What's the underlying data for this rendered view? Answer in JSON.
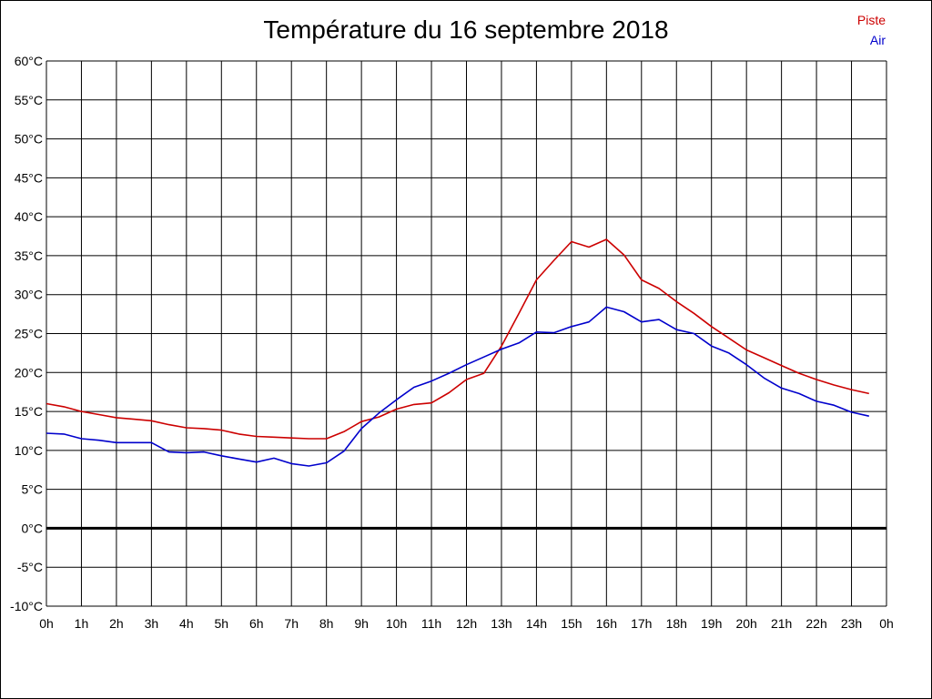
{
  "chart_data": {
    "type": "line",
    "title": "Température du 16 septembre 2018",
    "xlabel": "",
    "ylabel": "",
    "ylim": [
      -10,
      60
    ],
    "ytick_labels": [
      "60°C",
      "55°C",
      "50°C",
      "45°C",
      "40°C",
      "35°C",
      "30°C",
      "25°C",
      "20°C",
      "15°C",
      "10°C",
      "5°C",
      "0°C",
      "-5°C",
      "-10°C"
    ],
    "xtick_labels": [
      "0h",
      "1h",
      "2h",
      "3h",
      "4h",
      "5h",
      "6h",
      "7h",
      "8h",
      "9h",
      "10h",
      "11h",
      "12h",
      "13h",
      "14h",
      "15h",
      "16h",
      "17h",
      "18h",
      "19h",
      "20h",
      "21h",
      "22h",
      "23h",
      "0h"
    ],
    "grid": true,
    "legend": "top-right",
    "x": [
      0,
      0.5,
      1,
      1.5,
      2,
      2.5,
      3,
      3.5,
      4,
      4.5,
      5,
      5.5,
      6,
      6.5,
      7,
      7.5,
      8,
      8.5,
      9,
      9.5,
      10,
      10.5,
      11,
      11.5,
      12,
      12.5,
      13,
      13.5,
      14,
      14.5,
      15,
      15.5,
      16,
      16.5,
      17,
      17.5,
      18,
      18.5,
      19,
      19.5,
      20,
      20.5,
      21,
      21.5,
      22,
      22.5,
      23,
      23.5
    ],
    "series": [
      {
        "name": "Piste",
        "color": "#cc0000",
        "values": [
          16.0,
          15.6,
          15.0,
          14.6,
          14.2,
          14.0,
          13.8,
          13.3,
          12.9,
          12.8,
          12.6,
          12.1,
          11.8,
          11.7,
          11.6,
          11.5,
          11.5,
          12.4,
          13.7,
          14.3,
          15.3,
          15.9,
          16.1,
          17.4,
          19.1,
          19.9,
          23.4,
          27.6,
          31.9,
          34.4,
          36.8,
          36.1,
          37.1,
          35.1,
          31.9,
          30.8,
          29.1,
          27.6,
          25.9,
          24.4,
          22.9,
          21.9,
          20.9,
          19.9,
          19.1,
          18.4,
          17.8,
          17.3
        ]
      },
      {
        "name": "Air",
        "color": "#0000cc",
        "values": [
          12.2,
          12.1,
          11.5,
          11.3,
          11.0,
          11.0,
          11.0,
          9.8,
          9.7,
          9.8,
          9.3,
          8.9,
          8.5,
          9.0,
          8.3,
          8.0,
          8.4,
          9.9,
          12.8,
          14.8,
          16.5,
          18.1,
          18.9,
          19.9,
          21.0,
          22.0,
          23.0,
          23.8,
          25.2,
          25.1,
          25.9,
          26.5,
          28.4,
          27.8,
          26.5,
          26.8,
          25.5,
          25.0,
          23.4,
          22.5,
          21.0,
          19.3,
          18.0,
          17.3,
          16.3,
          15.8,
          14.9,
          14.4
        ]
      }
    ]
  }
}
